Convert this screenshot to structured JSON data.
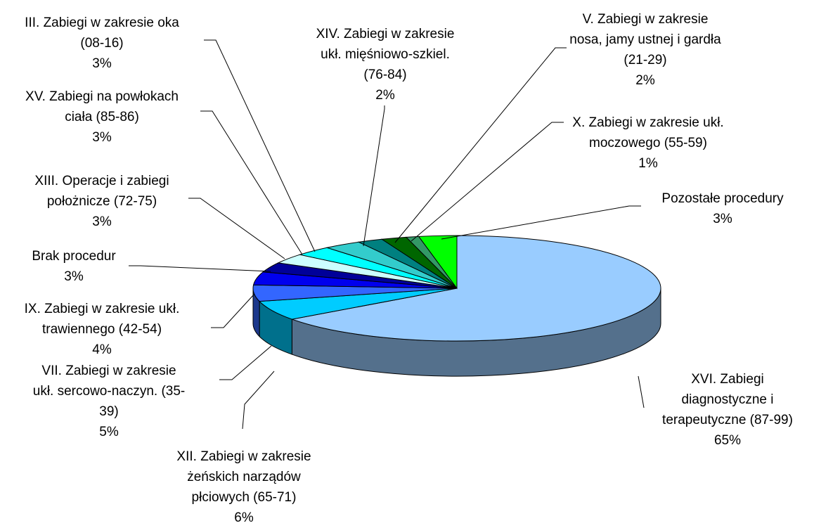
{
  "chart_data": {
    "type": "pie",
    "three_d": true,
    "categories": [
      "XVI. Zabiegi\ndiagnostyczne i\nterapeutyczne (87-99)",
      "XII. Zabiegi w zakresie\nżeńskich narządów\npłciowych (65-71)",
      "VII. Zabiegi w zakresie\nukł. sercowo-naczyn. (35-\n39)",
      "IX. Zabiegi w zakresie ukł.\ntrawiennego (42-54)",
      "Brak procedur",
      "XIII. Operacje i zabiegi\npołożnicze (72-75)",
      "XV. Zabiegi na powłokach\nciała (85-86)",
      "III. Zabiegi w zakresie oka\n(08-16)",
      "XIV. Zabiegi w zakresie\nukł. mięśniowo-szkiel.\n(76-84)",
      "V. Zabiegi w zakresie\nnosa, jamy ustnej i gardła\n(21-29)",
      "X. Zabiegi w zakresie ukł.\nmoczowego (55-59)",
      "Pozostałe procedury"
    ],
    "values": [
      65,
      6,
      5,
      4,
      3,
      3,
      3,
      3,
      2,
      2,
      1,
      3
    ],
    "value_labels": [
      "65%",
      "6%",
      "5%",
      "4%",
      "3%",
      "3%",
      "3%",
      "3%",
      "2%",
      "2%",
      "1%",
      "3%"
    ],
    "colors": [
      "#99ccff",
      "#00ccff",
      "#3366ff",
      "#0000ee",
      "#000099",
      "#ccffff",
      "#00ffff",
      "#33cccc",
      "#008080",
      "#006600",
      "#339966",
      "#00ff00"
    ]
  }
}
